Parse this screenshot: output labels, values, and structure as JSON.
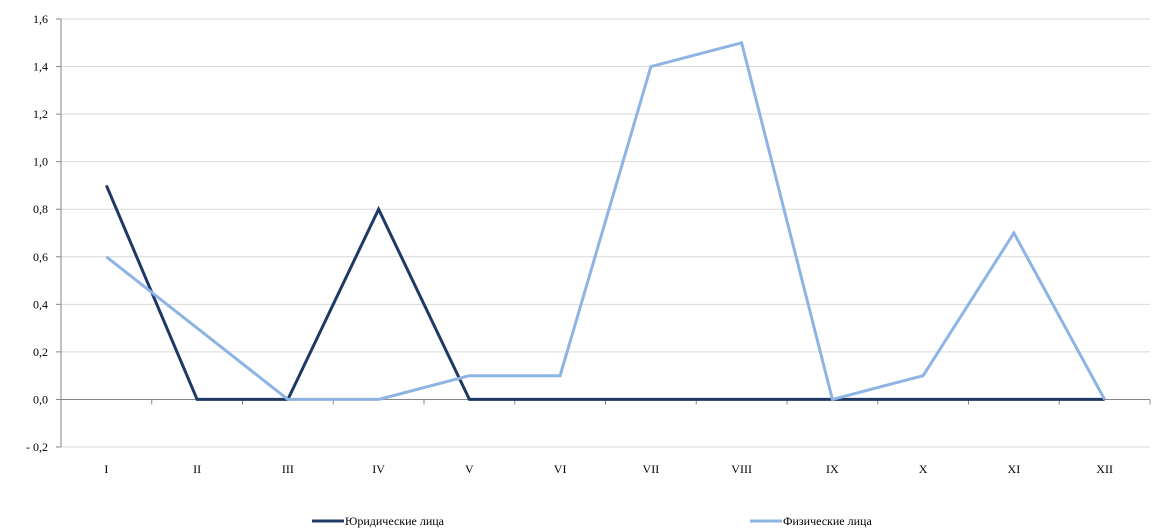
{
  "chart_data": {
    "type": "line",
    "title": "",
    "xlabel": "",
    "ylabel": "",
    "categories": [
      "I",
      "II",
      "III",
      "IV",
      "V",
      "VI",
      "VII",
      "VIII",
      "IX",
      "X",
      "XI",
      "XII"
    ],
    "ylim": [
      -0.2,
      1.6
    ],
    "yticks": [
      -0.2,
      0.0,
      0.2,
      0.4,
      0.6,
      0.8,
      1.0,
      1.2,
      1.4,
      1.6
    ],
    "ytick_labels": [
      "- 0,2",
      "0,0",
      "0,2",
      "0,4",
      "0,6",
      "0,8",
      "1,0",
      "1,2",
      "1,4",
      "1,6"
    ],
    "grid": true,
    "legend_position": "bottom",
    "series": [
      {
        "name": "Юридические лица",
        "color": "#1f3864",
        "values": [
          0.9,
          0.0,
          0.0,
          0.8,
          0.0,
          0.0,
          0.0,
          0.0,
          0.0,
          0.0,
          0.0,
          0.0
        ]
      },
      {
        "name": "Физические лица",
        "color": "#8eb4e3",
        "values": [
          0.6,
          0.3,
          0.0,
          0.0,
          0.1,
          0.1,
          1.4,
          1.5,
          0.0,
          0.1,
          0.7,
          0.0
        ]
      }
    ]
  }
}
